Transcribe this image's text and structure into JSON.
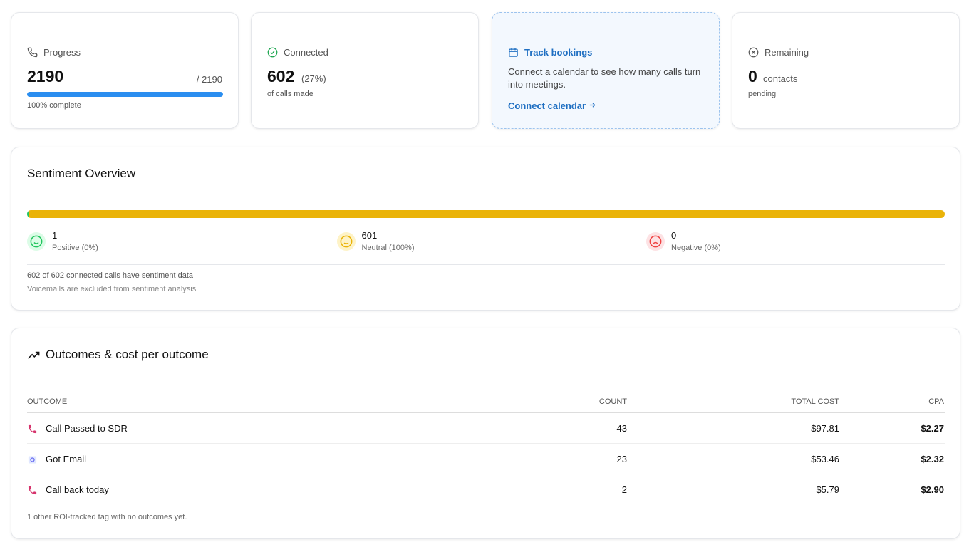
{
  "cards": [
    {
      "label": "Progress",
      "value": "2190",
      "total": "/ 2190",
      "note": "100% complete"
    },
    {
      "label": "Connected",
      "value": "602",
      "pct": "(27%)",
      "note": "of calls made"
    },
    {
      "label": "Track bookings",
      "text": "Connect a calendar to see how many calls turn into meetings.",
      "link": "Connect calendar"
    },
    {
      "label": "Remaining",
      "value": "0",
      "unit": "contacts",
      "note": "pending"
    }
  ],
  "sentiment": {
    "title": "Sentiment Overview",
    "items": [
      {
        "count": 1,
        "label": "Positive (0%)",
        "color": "#22c55e"
      },
      {
        "count": 601,
        "label": "Neutral (100%)",
        "color": "#eab308"
      },
      {
        "count": 0,
        "label": "Negative (0%)",
        "color": "#ef4444"
      }
    ],
    "summary": "602 of 602 connected calls have sentiment data",
    "note": "Voicemails are excluded from sentiment analysis"
  },
  "outcomes": {
    "title": "Outcomes & cost per outcome",
    "columns": [
      "OUTCOME",
      "COUNT",
      "TOTAL COST",
      "CPA"
    ],
    "rows": [
      [
        "Call Passed to SDR",
        "43",
        "$97.81",
        "$2.27"
      ],
      [
        "Got Email",
        "23",
        "$53.46",
        "$2.32"
      ],
      [
        "Call back today",
        "2",
        "$5.79",
        "$2.90"
      ]
    ],
    "footer": "1 other ROI-tracked tag with no outcomes yet."
  }
}
